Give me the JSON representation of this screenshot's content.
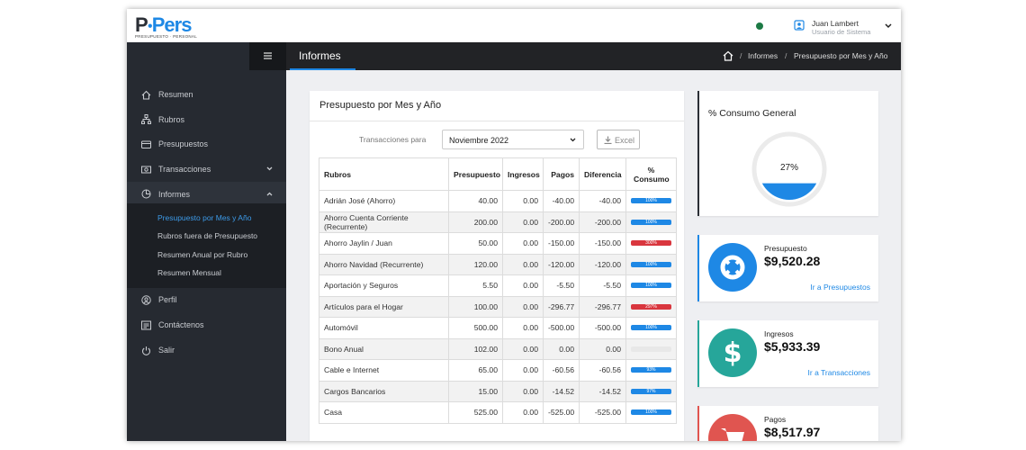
{
  "header": {
    "logo_p": "P",
    "logo_rest": "Pers",
    "logo_tagline": "PRESUPUESTO · PERSONAL",
    "user_name": "Juan Lambert",
    "user_role": "Usuario de Sistema"
  },
  "toolbar": {
    "title": "Informes",
    "breadcrumb": [
      "Informes",
      "Presupuesto por Mes y Año"
    ]
  },
  "sidebar": {
    "items": [
      {
        "label": "Resumen",
        "icon": "home"
      },
      {
        "label": "Rubros",
        "icon": "tree"
      },
      {
        "label": "Presupuestos",
        "icon": "card"
      },
      {
        "label": "Transacciones",
        "icon": "cash",
        "chevron": "down"
      },
      {
        "label": "Informes",
        "icon": "pie",
        "chevron": "up",
        "active": true
      }
    ],
    "submenu": [
      "Presupuesto por Mes y Año",
      "Rubros fuera de Presupuesto",
      "Resumen Anual por Rubro",
      "Resumen Mensual"
    ],
    "items_after": [
      {
        "label": "Perfil",
        "icon": "user"
      },
      {
        "label": "Contáctenos",
        "icon": "doc"
      },
      {
        "label": "Salir",
        "icon": "power"
      }
    ]
  },
  "report": {
    "title": "Presupuesto por Mes y Año",
    "filter_label": "Transacciones para",
    "month": "Noviembre 2022",
    "excel": "Excel",
    "columns": [
      "Rubros",
      "Presupuesto",
      "Ingresos",
      "Pagos",
      "Diferencia",
      "% Consumo"
    ],
    "rows": [
      {
        "rubro": "Adrián José (Ahorro)",
        "presupuesto": "40.00",
        "ingresos": "0.00",
        "pagos": "-40.00",
        "diferencia": "-40.00",
        "consumo": "100%",
        "bar_color": "#1e88e5"
      },
      {
        "rubro": "Ahorro Cuenta Corriente (Recurrente)",
        "presupuesto": "200.00",
        "ingresos": "0.00",
        "pagos": "-200.00",
        "diferencia": "-200.00",
        "consumo": "100%",
        "bar_color": "#1e88e5"
      },
      {
        "rubro": "Ahorro Jaylin / Juan",
        "presupuesto": "50.00",
        "ingresos": "0.00",
        "pagos": "-150.00",
        "diferencia": "-150.00",
        "consumo": "300%",
        "bar_color": "#d9363e"
      },
      {
        "rubro": "Ahorro Navidad (Recurrente)",
        "presupuesto": "120.00",
        "ingresos": "0.00",
        "pagos": "-120.00",
        "diferencia": "-120.00",
        "consumo": "100%",
        "bar_color": "#1e88e5"
      },
      {
        "rubro": "Aportación y Seguros",
        "presupuesto": "5.50",
        "ingresos": "0.00",
        "pagos": "-5.50",
        "diferencia": "-5.50",
        "consumo": "100%",
        "bar_color": "#1e88e5"
      },
      {
        "rubro": "Artículos para el Hogar",
        "presupuesto": "100.00",
        "ingresos": "0.00",
        "pagos": "-296.77",
        "diferencia": "-296.77",
        "consumo": "297%",
        "bar_color": "#d9363e"
      },
      {
        "rubro": "Automóvil",
        "presupuesto": "500.00",
        "ingresos": "0.00",
        "pagos": "-500.00",
        "diferencia": "-500.00",
        "consumo": "100%",
        "bar_color": "#1e88e5"
      },
      {
        "rubro": "Bono Anual",
        "presupuesto": "102.00",
        "ingresos": "0.00",
        "pagos": "0.00",
        "diferencia": "0.00",
        "consumo": null,
        "bar_color": null
      },
      {
        "rubro": "Cable e Internet",
        "presupuesto": "65.00",
        "ingresos": "0.00",
        "pagos": "-60.56",
        "diferencia": "-60.56",
        "consumo": "93%",
        "bar_color": "#1e88e5"
      },
      {
        "rubro": "Cargos Bancarios",
        "presupuesto": "15.00",
        "ingresos": "0.00",
        "pagos": "-14.52",
        "diferencia": "-14.52",
        "consumo": "97%",
        "bar_color": "#1e88e5"
      },
      {
        "rubro": "Casa",
        "presupuesto": "525.00",
        "ingresos": "0.00",
        "pagos": "-525.00",
        "diferencia": "-525.00",
        "consumo": "100%",
        "bar_color": "#1e88e5"
      }
    ]
  },
  "summary": {
    "title": "% Consumo General",
    "value": 27,
    "label": "27%",
    "color": "#1e88e5",
    "cards": [
      {
        "title": "Presupuesto",
        "amount": "$9,520.28",
        "link": "Ir a Presupuestos",
        "color": "#1e88e5",
        "icon": "buoy"
      },
      {
        "title": "Ingresos",
        "amount": "$5,933.39",
        "link": "Ir a Transacciones",
        "color": "#26a69a",
        "icon": "dollar"
      },
      {
        "title": "Pagos",
        "amount": "$8,517.97",
        "color": "#e05550",
        "icon": "cart"
      }
    ]
  }
}
